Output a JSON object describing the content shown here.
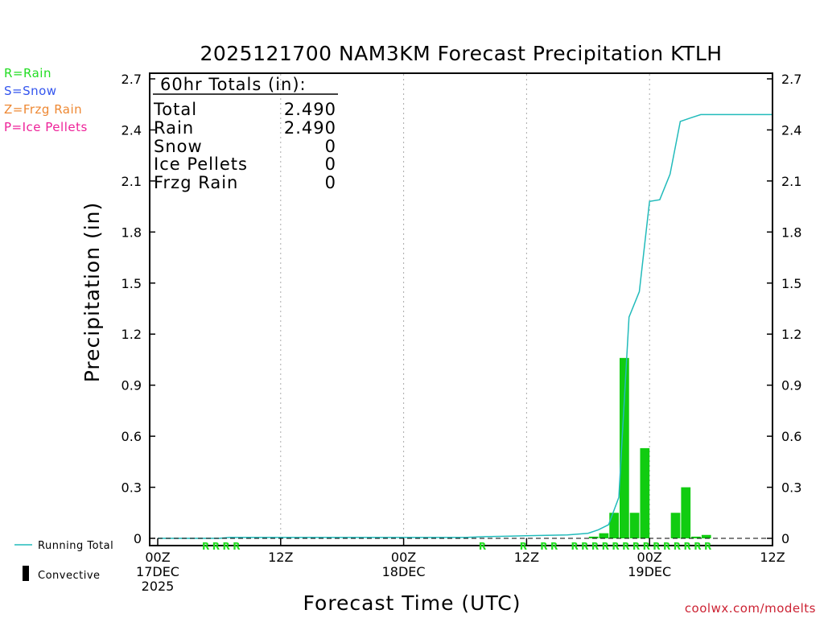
{
  "title": "2025121700 NAM3KM Forecast Precipitation KTLH",
  "xlabel": "Forecast Time (UTC)",
  "ylabel": "Precipitation (in)",
  "credit": "coolwx.com/modelts",
  "precip_type_legend": [
    {
      "text": "R=Rain",
      "color": "#22dd22"
    },
    {
      "text": "S=Snow",
      "color": "#3355ee"
    },
    {
      "text": "Z=Frzg Rain",
      "color": "#ee8833"
    },
    {
      "text": "P=Ice Pellets",
      "color": "#ee2299"
    }
  ],
  "series_legend": {
    "running_total": "Running Total",
    "convective": "Convective"
  },
  "totals": {
    "header": "60hr Totals (in):",
    "rows": [
      {
        "label": "Total",
        "value": "2.490"
      },
      {
        "label": "Rain",
        "value": "2.490"
      },
      {
        "label": "Snow",
        "value": "0"
      },
      {
        "label": "Ice Pellets",
        "value": "0"
      },
      {
        "label": "Frzg Rain",
        "value": "0"
      }
    ]
  },
  "x_ticks": [
    {
      "hour": 0,
      "lines": [
        "00Z",
        "17DEC",
        "2025"
      ]
    },
    {
      "hour": 12,
      "lines": [
        "12Z"
      ]
    },
    {
      "hour": 24,
      "lines": [
        "00Z",
        "18DEC"
      ]
    },
    {
      "hour": 36,
      "lines": [
        "12Z"
      ]
    },
    {
      "hour": 48,
      "lines": [
        "00Z",
        "19DEC"
      ]
    },
    {
      "hour": 60,
      "lines": [
        "12Z"
      ]
    }
  ],
  "chart_data": {
    "type": "bar",
    "title": "2025121700 NAM3KM Forecast Precipitation KTLH",
    "xlabel": "Forecast Time (UTC)",
    "ylabel": "Precipitation (in)",
    "xlim": [
      0,
      60
    ],
    "ylim": [
      0,
      2.75
    ],
    "y_ticks": [
      "0",
      "0.3",
      "0.6",
      "0.9",
      "1.2",
      "1.5",
      "1.8",
      "2.1",
      "2.4",
      "2.7"
    ],
    "y_tick_values": [
      0,
      0.3,
      0.6,
      0.9,
      1.2,
      1.5,
      1.8,
      2.1,
      2.4,
      2.7
    ],
    "grid": "vertical dotted lines at 12-hour ticks",
    "colors": {
      "running_total": "#22bbbb",
      "bars": "#11cc11",
      "ptype_rain": "#22dd22"
    },
    "hourly_precip": {
      "hours": [
        43,
        44,
        45,
        46,
        47,
        48,
        49,
        50,
        51,
        52,
        53,
        54,
        55
      ],
      "values": [
        0.01,
        0.03,
        0.15,
        1.06,
        0.15,
        0.53,
        0.0,
        0.0,
        0.15,
        0.3,
        0.01,
        0.02,
        0.0
      ]
    },
    "running_total": {
      "name": "Running Total",
      "hours": [
        0,
        6,
        7,
        24,
        30,
        32,
        36,
        40,
        42,
        43,
        44,
        45,
        46,
        47,
        48,
        49,
        50,
        51,
        52,
        53,
        54,
        55,
        60
      ],
      "values": [
        0.0,
        0.0,
        0.005,
        0.005,
        0.005,
        0.01,
        0.015,
        0.02,
        0.03,
        0.05,
        0.08,
        0.24,
        1.3,
        1.45,
        1.98,
        1.99,
        2.14,
        2.45,
        2.47,
        2.49,
        2.49,
        2.49,
        2.49
      ]
    },
    "ptype_marks": {
      "symbol": "R",
      "hours": [
        5,
        6,
        7,
        8,
        32,
        36,
        38,
        39,
        41,
        42,
        43,
        44,
        45,
        46,
        47,
        48,
        49,
        50,
        51,
        52,
        53,
        54
      ]
    }
  }
}
